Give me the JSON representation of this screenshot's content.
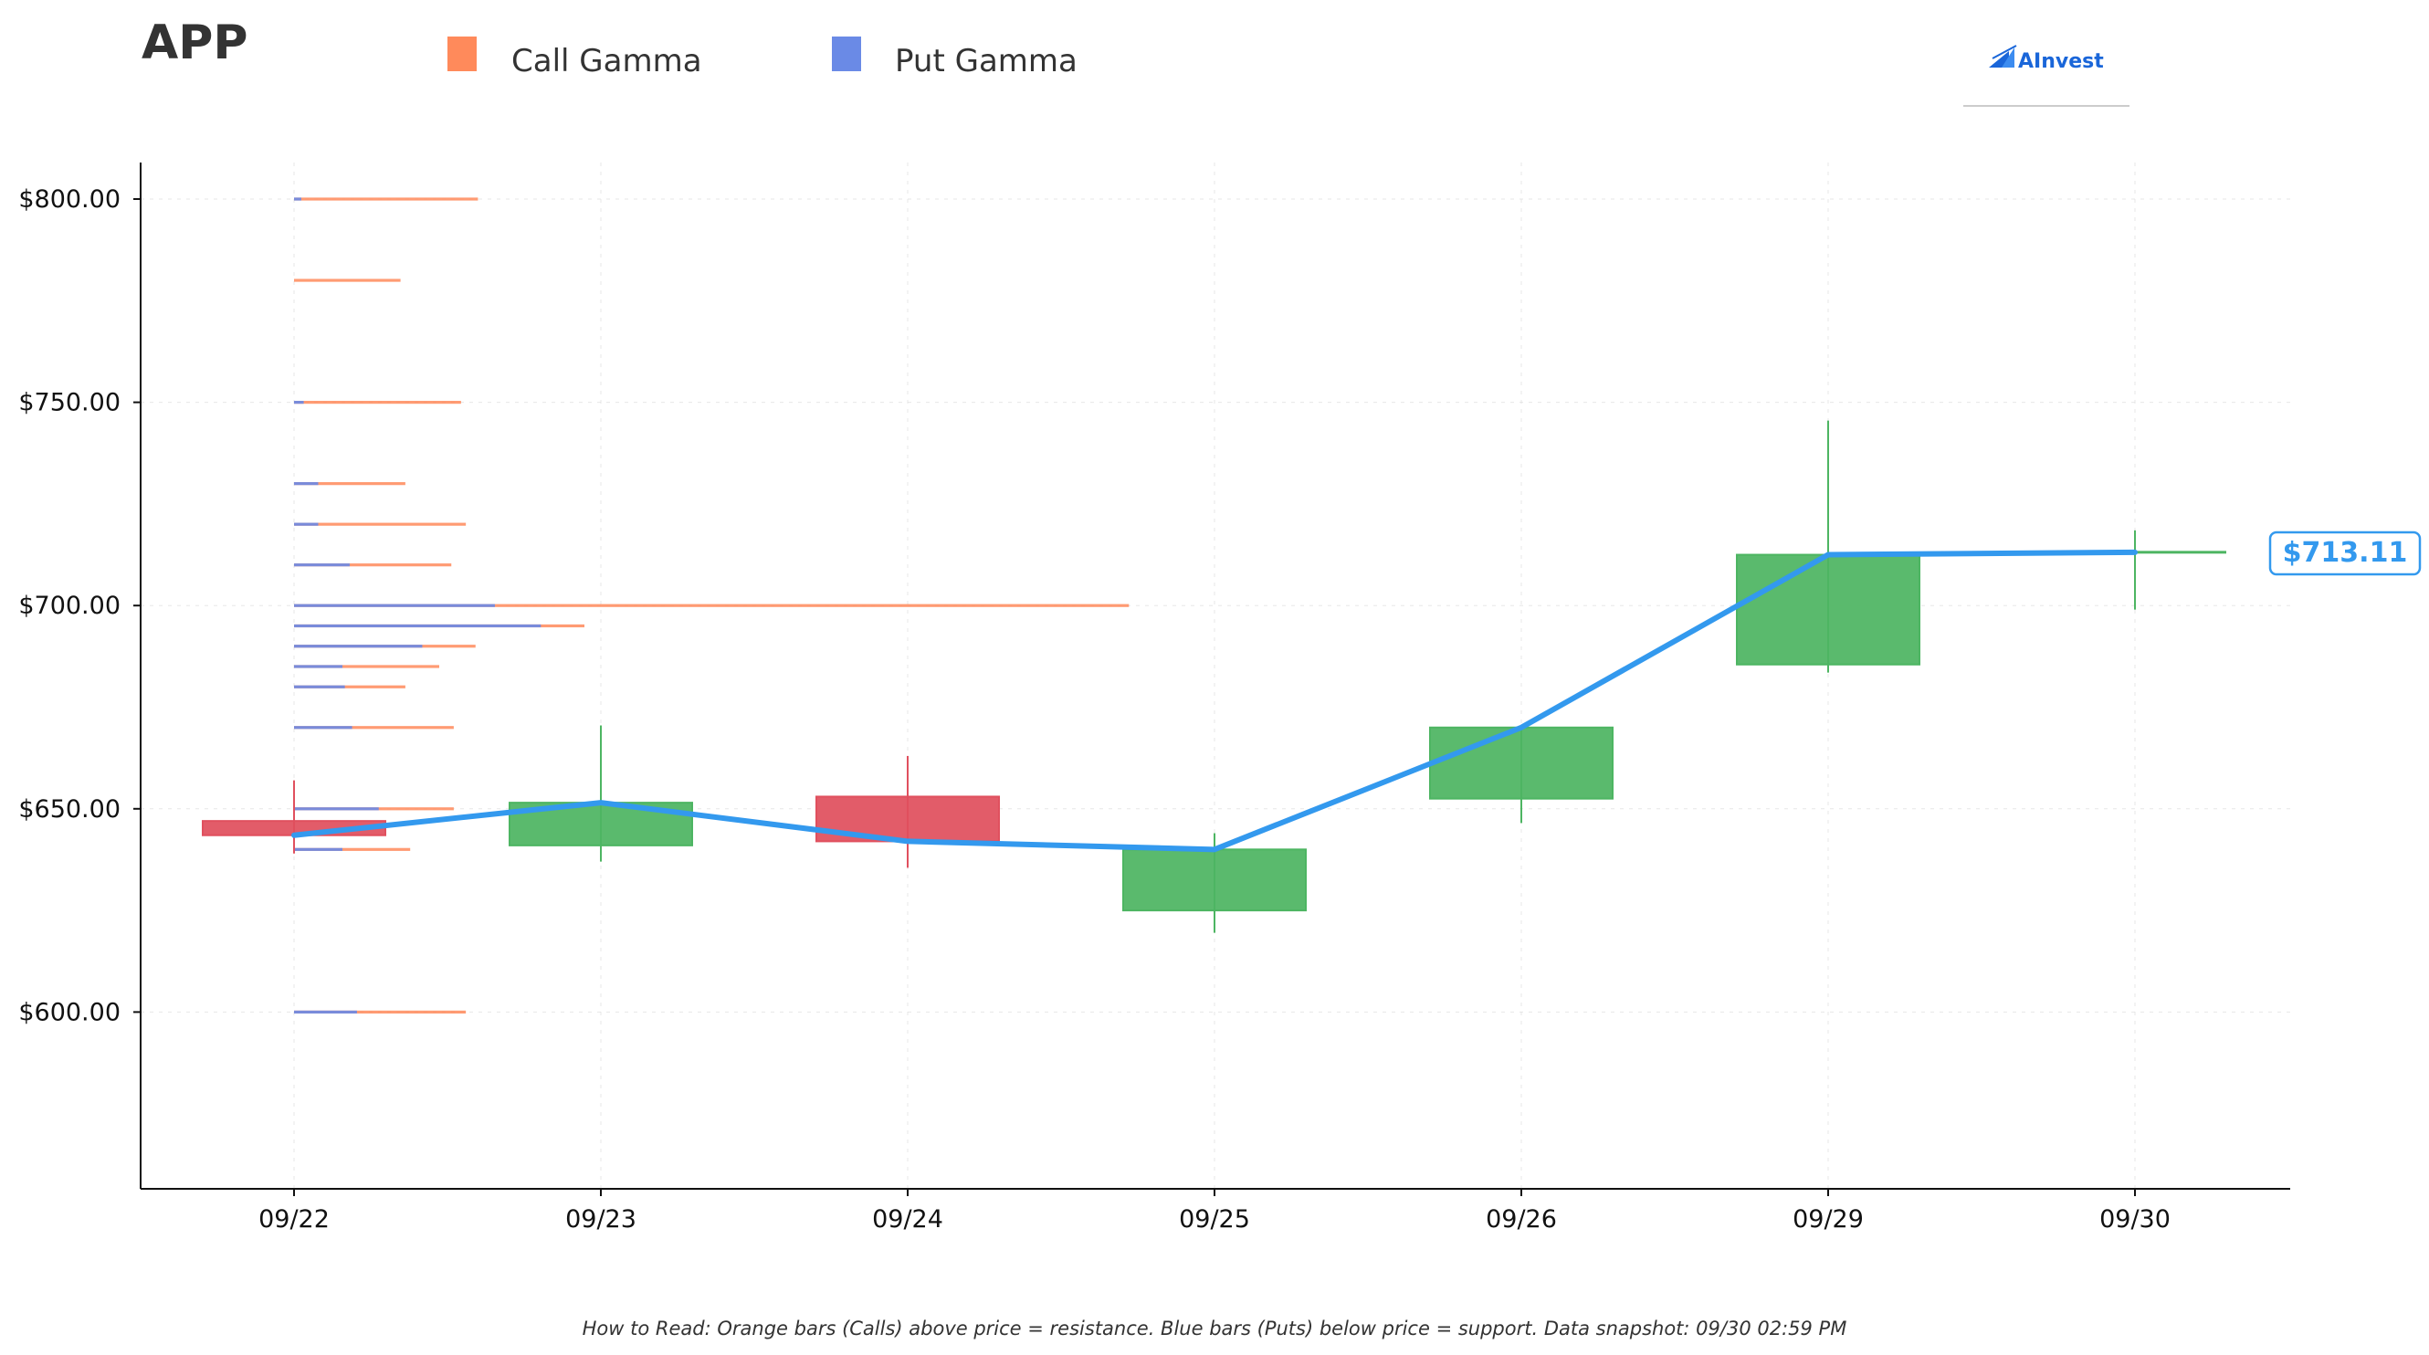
{
  "header": {
    "ticker": "APP",
    "brand": "AInvest"
  },
  "legend": [
    {
      "label": "Call Gamma",
      "color": "#FF8A5B"
    },
    {
      "label": "Put Gamma",
      "color": "#6A8AE6"
    }
  ],
  "footer": {
    "note": "How to Read: Orange bars (Calls) above price = resistance. Blue bars (Puts) below price = support. Data snapshot: 09/30 02:59 PM"
  },
  "colors": {
    "up": "#4DB562",
    "down": "#E0505E",
    "price_line": "#3399EE",
    "call": "#FF8A5B",
    "put": "#6A8AE6"
  },
  "chart_data": {
    "type": "candlestick",
    "ylim": [
      557,
      810
    ],
    "yticks": [
      600,
      650,
      700,
      750,
      800
    ],
    "ytick_labels": [
      "$600.00",
      "$650.00",
      "$700.00",
      "$750.00",
      "$800.00"
    ],
    "categories": [
      "09/22",
      "09/23",
      "09/24",
      "09/25",
      "09/26",
      "09/29",
      "09/30"
    ],
    "candles": [
      {
        "date": "09/22",
        "open": 647,
        "high": 657,
        "low": 639,
        "close": 643.5
      },
      {
        "date": "09/23",
        "open": 641,
        "high": 670.5,
        "low": 637,
        "close": 651.5
      },
      {
        "date": "09/24",
        "open": 653,
        "high": 663,
        "low": 635.5,
        "close": 642
      },
      {
        "date": "09/25",
        "open": 625,
        "high": 644,
        "low": 619.5,
        "close": 640
      },
      {
        "date": "09/26",
        "open": 652.5,
        "high": 670,
        "low": 646.5,
        "close": 670
      },
      {
        "date": "09/29",
        "open": 685.5,
        "high": 745.5,
        "low": 683.5,
        "close": 712.5
      },
      {
        "date": "09/30",
        "open": 713,
        "high": 718.5,
        "low": 699,
        "close": 713.11
      }
    ],
    "price_line": [
      643.5,
      651.5,
      642,
      640,
      670,
      712.5,
      713.11
    ],
    "last_price_label": "$713.11",
    "gamma_levels": [
      {
        "strike": 800,
        "call": 0.76,
        "put": 0.03
      },
      {
        "strike": 780,
        "call": 0.44,
        "put": 0
      },
      {
        "strike": 750,
        "call": 0.69,
        "put": 0.04
      },
      {
        "strike": 730,
        "call": 0.46,
        "put": 0.1
      },
      {
        "strike": 720,
        "call": 0.71,
        "put": 0.1
      },
      {
        "strike": 710,
        "call": 0.65,
        "put": 0.23
      },
      {
        "strike": 700,
        "call": 3.45,
        "put": 0.83
      },
      {
        "strike": 695,
        "call": 1.2,
        "put": 1.02
      },
      {
        "strike": 690,
        "call": 0.75,
        "put": 0.53
      },
      {
        "strike": 685,
        "call": 0.6,
        "put": 0.2
      },
      {
        "strike": 680,
        "call": 0.46,
        "put": 0.21
      },
      {
        "strike": 670,
        "call": 0.66,
        "put": 0.24
      },
      {
        "strike": 650,
        "call": 0.66,
        "put": 0.35
      },
      {
        "strike": 640,
        "call": 0.48,
        "put": 0.2
      },
      {
        "strike": 600,
        "call": 0.71,
        "put": 0.26
      }
    ]
  }
}
